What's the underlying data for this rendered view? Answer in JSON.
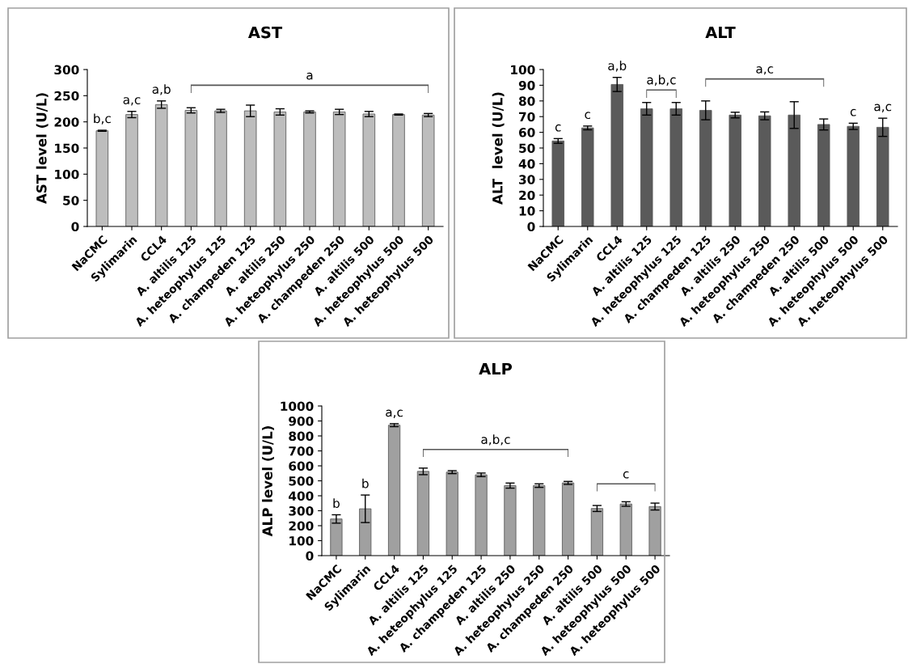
{
  "chart_data": [
    {
      "type": "bar",
      "title": "AST",
      "ylabel": "AST level (U/L)",
      "categories": [
        "NaCMC",
        "Sylimarin",
        "CCL4",
        "A. altilis 125",
        "A. heteophylus 125",
        "A. champeden 125",
        "A. altilis 250",
        "A. heteophylus 250",
        "A. champeden 250",
        "A. altilis 500",
        "A. heteophylus 500",
        "A. heteophylus 500"
      ],
      "values": [
        183,
        214,
        233,
        222,
        221,
        221,
        219,
        219,
        219,
        215,
        214,
        213
      ],
      "errors": [
        1,
        6,
        7,
        5,
        3,
        11,
        6,
        2,
        5,
        5,
        1,
        3
      ],
      "color": "#bdbdbd",
      "ylim": [
        0,
        300
      ],
      "yticks": [
        0,
        50,
        100,
        150,
        200,
        250,
        300
      ],
      "value_labels": [
        "b,c",
        "a,c",
        "a,b",
        null,
        null,
        null,
        null,
        null,
        null,
        null,
        null,
        null
      ],
      "annotations": [
        "a"
      ]
    },
    {
      "type": "bar",
      "title": "ALT",
      "ylabel": "ALT  level (U/L)",
      "categories": [
        "NaCMC",
        "Sylimarin",
        "CCL4",
        "A. altilis 125",
        "A. heteophylus 125",
        "A. champeden 125",
        "A. altilis 250",
        "A. heteophylus 250",
        "A. champeden 250",
        "A. altilis 500",
        "A. heteophylus 500",
        "A. heteophylus 500"
      ],
      "values": [
        54.5,
        62.8,
        90.5,
        75,
        75,
        74,
        71,
        70.5,
        71,
        65,
        63.8,
        63.2
      ],
      "errors": [
        1.5,
        1.2,
        4.5,
        4,
        4,
        6,
        1.8,
        2.5,
        8.5,
        3.5,
        2,
        5.8
      ],
      "color": "#5a5a5a",
      "ylim": [
        0,
        100
      ],
      "yticks": [
        0,
        10,
        20,
        30,
        40,
        50,
        60,
        70,
        80,
        90,
        100
      ],
      "value_labels": [
        "c",
        "c",
        "a,b",
        null,
        null,
        null,
        null,
        null,
        null,
        null,
        "c",
        "a,c"
      ],
      "annotations": [
        "a,b,c",
        "a,c"
      ]
    },
    {
      "type": "bar",
      "title": "ALP",
      "ylabel": "ALP level (U/L)",
      "categories": [
        "NaCMC",
        "Sylimarin",
        "CCL4",
        "A. altilis 125",
        "A. heteophylus 125",
        "A. champeden 125",
        "A. altilis 250",
        "A. heteophylus 250",
        "A. champeden 250",
        "A. altilis 500",
        "A. heteophylus 500",
        "A. heteophylus 500"
      ],
      "values": [
        245,
        313,
        872,
        563,
        558,
        540,
        468,
        468,
        486,
        315,
        345,
        328
      ],
      "errors": [
        28,
        92,
        10,
        22,
        10,
        12,
        17,
        12,
        10,
        20,
        15,
        23
      ],
      "color": "#a0a0a0",
      "ylim": [
        0,
        1000
      ],
      "yticks": [
        0,
        100,
        200,
        300,
        400,
        500,
        600,
        700,
        800,
        900,
        1000
      ],
      "value_labels": [
        "b",
        "b",
        "a,c",
        null,
        null,
        null,
        null,
        null,
        null,
        null,
        null,
        null
      ],
      "annotations": [
        "a,b,c",
        "c"
      ]
    }
  ]
}
